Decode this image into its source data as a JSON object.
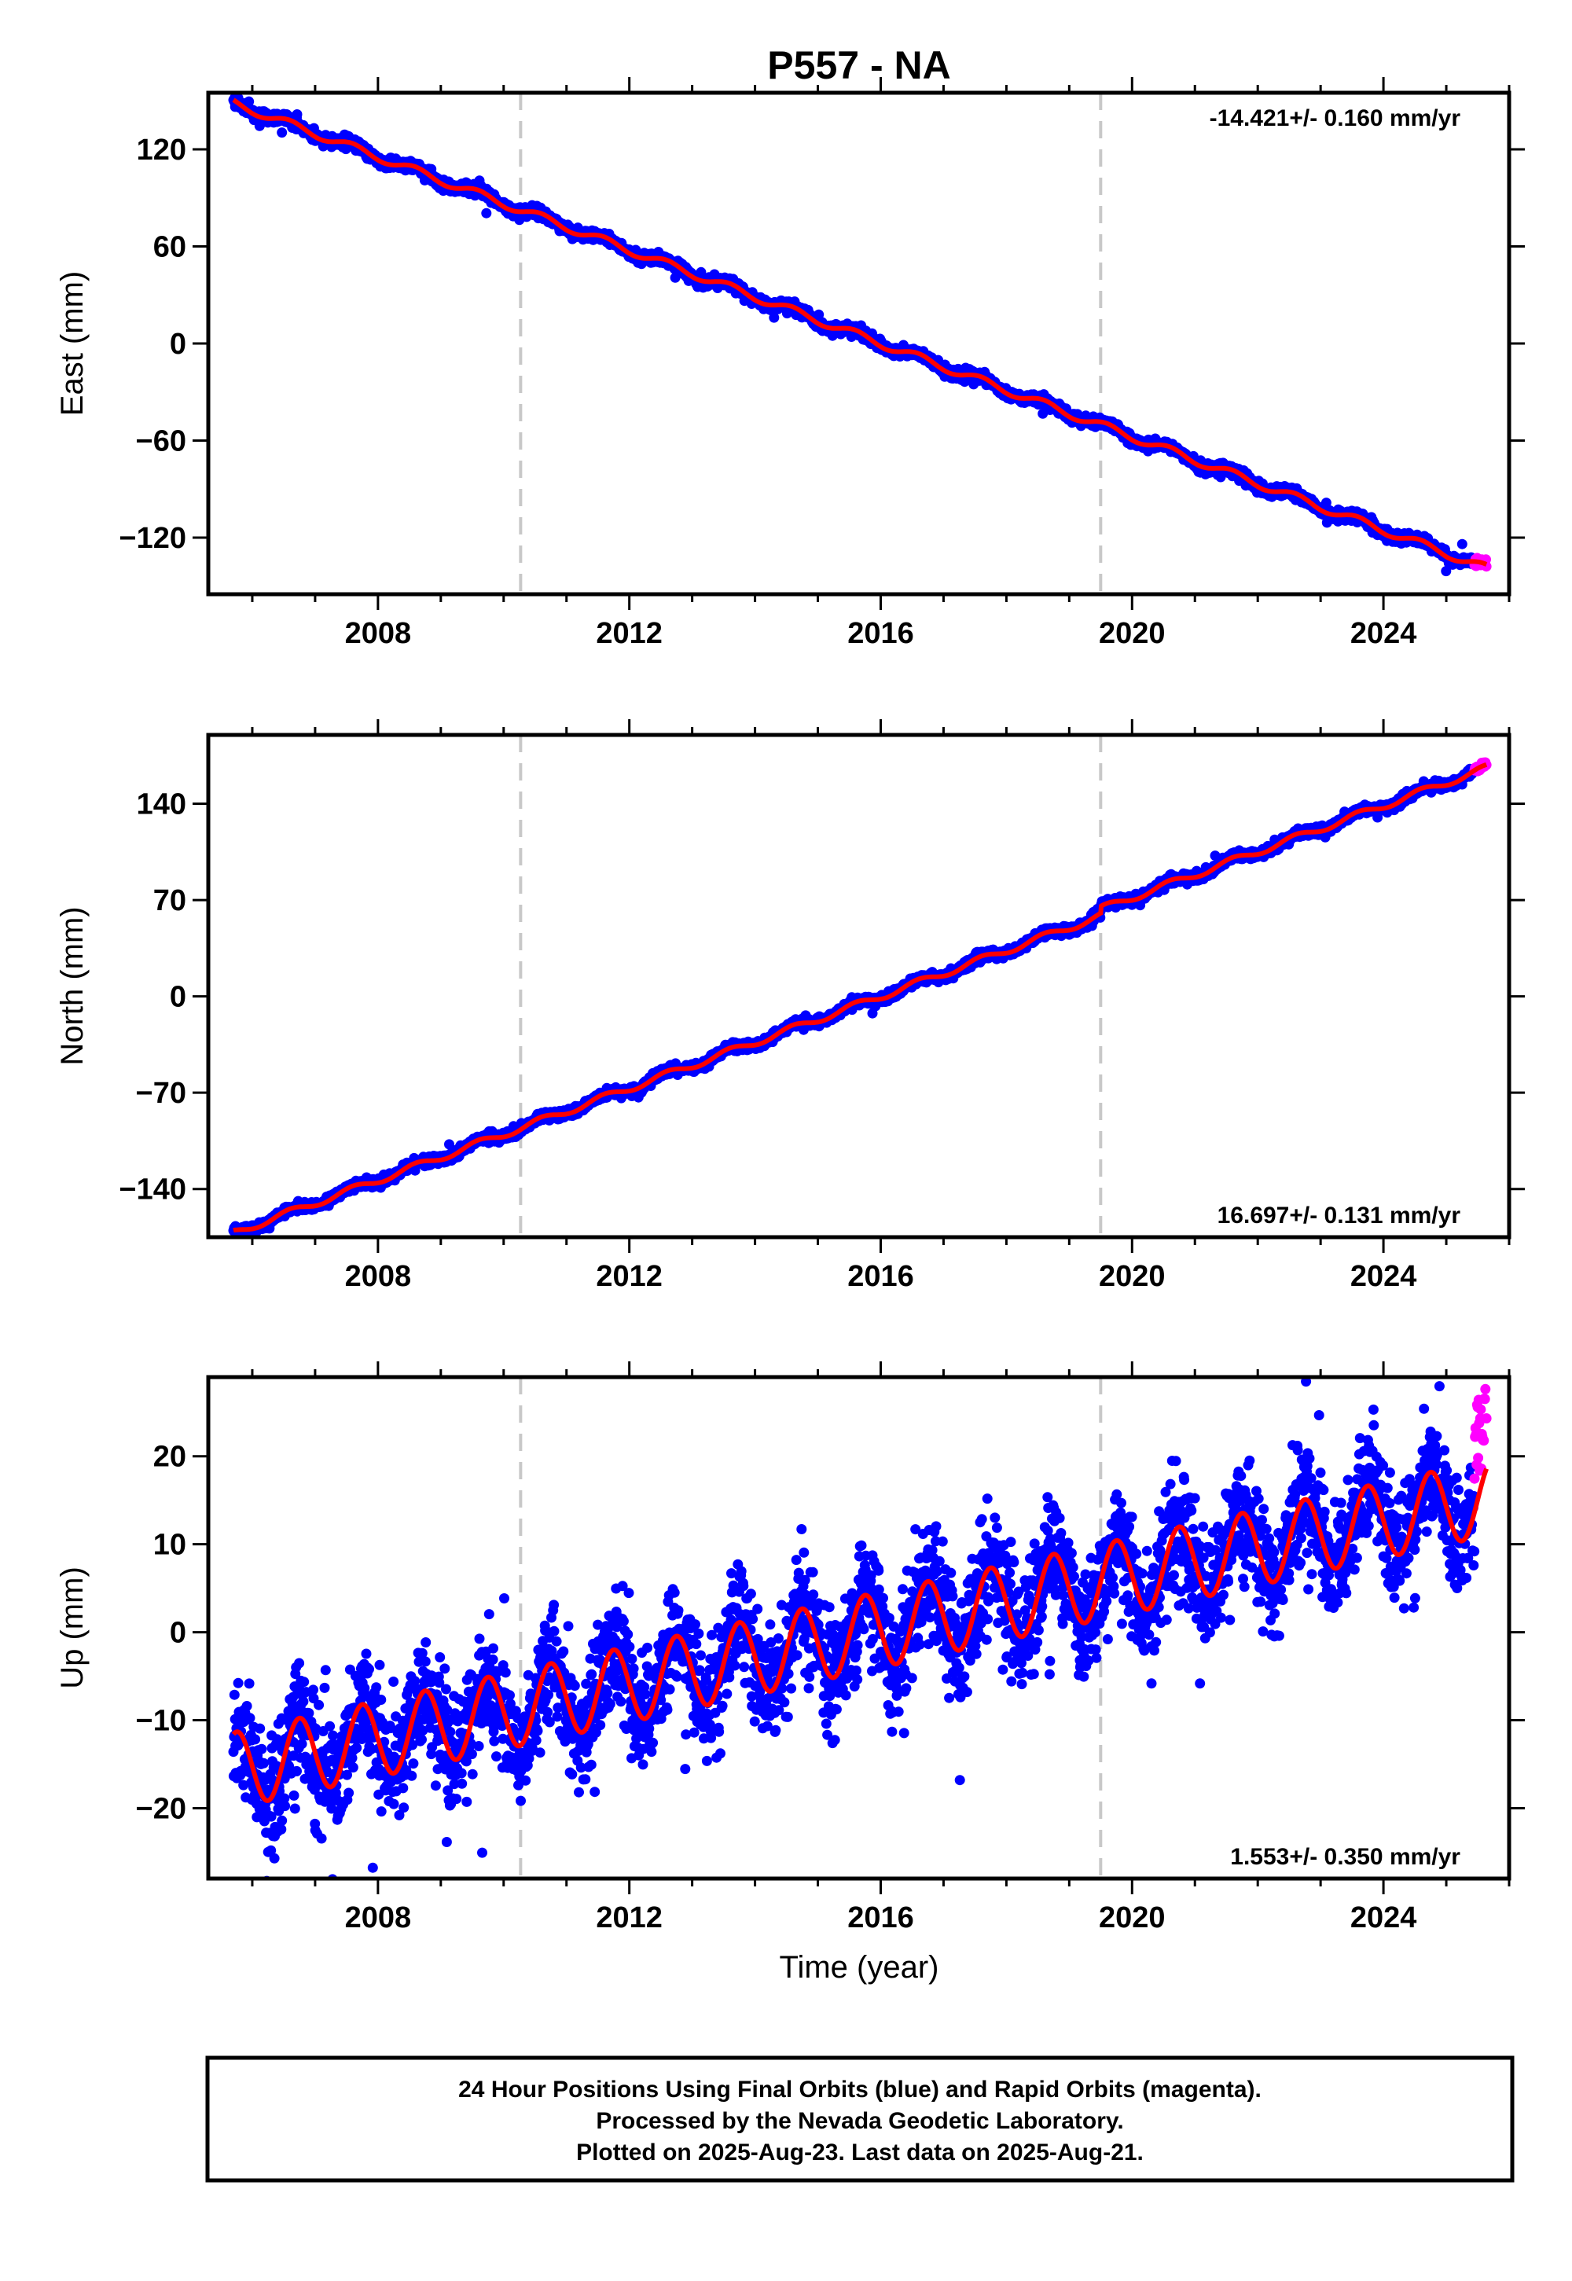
{
  "title": "P557 - NA",
  "xlabel": "Time (year)",
  "footer": [
    "24 Hour Positions Using Final Orbits (blue) and Rapid Orbits (magenta).",
    "Processed by the Nevada Geodetic Laboratory.",
    "Plotted on 2025-Aug-23. Last data on 2025-Aug-21."
  ],
  "colors": {
    "final": "#0000ff",
    "rapid": "#ff00ff",
    "model": "#ff0000",
    "step_line": "#c8c8c8"
  },
  "chart_data": [
    {
      "type": "scatter",
      "ylabel": "East (mm)",
      "rate_text": "-14.421+/- 0.160 mm/yr",
      "rate_position": "top-right",
      "xlim": [
        2005.3,
        2026.0
      ],
      "ylim": [
        -155,
        155
      ],
      "xticks": [
        2008,
        2012,
        2016,
        2020,
        2024
      ],
      "yticks": [
        -120,
        -60,
        0,
        60,
        120
      ],
      "step_epochs": [
        2010.27,
        2019.5
      ],
      "start_year": 2005.7,
      "end_year": 2025.45,
      "rapid_start_year": 2025.45,
      "rapid_end_year": 2025.64,
      "intercept_at_2016": 0,
      "rate_mm_per_yr": -14.421,
      "annual_amp_mm": 2.5,
      "noise_mm": 1.6,
      "series": [
        {
          "name": "Final Orbits (blue)",
          "points": "daily solutions 2005.7–2025.45"
        },
        {
          "name": "Rapid Orbits (magenta)",
          "points": "daily solutions 2025.45–2025.64"
        }
      ]
    },
    {
      "type": "scatter",
      "ylabel": "North (mm)",
      "rate_text": "16.697+/- 0.131 mm/yr",
      "rate_position": "bottom-right",
      "xlim": [
        2005.3,
        2026.0
      ],
      "ylim": [
        -175,
        190
      ],
      "xticks": [
        2008,
        2012,
        2016,
        2020,
        2024
      ],
      "yticks": [
        -140,
        -70,
        0,
        70,
        140
      ],
      "step_epochs": [
        2010.27,
        2019.5
      ],
      "start_year": 2005.7,
      "end_year": 2025.45,
      "rapid_start_year": 2025.45,
      "rapid_end_year": 2025.64,
      "intercept_at_2016": 0,
      "rate_mm_per_yr": 16.697,
      "annual_amp_mm": 2.5,
      "noise_mm": 1.6,
      "offset_at_2019_5_mm": 5,
      "series": [
        {
          "name": "Final Orbits (blue)",
          "points": "daily solutions 2005.7–2025.45"
        },
        {
          "name": "Rapid Orbits (magenta)",
          "points": "daily solutions 2025.45–2025.64"
        }
      ]
    },
    {
      "type": "scatter",
      "ylabel": "Up (mm)",
      "rate_text": "1.553+/- 0.350 mm/yr",
      "rate_position": "bottom-right",
      "xlim": [
        2005.3,
        2026.0
      ],
      "ylim": [
        -28,
        29
      ],
      "xticks": [
        2008,
        2012,
        2016,
        2020,
        2024
      ],
      "yticks": [
        -20,
        -10,
        0,
        10,
        20
      ],
      "step_epochs": [
        2010.27,
        2019.5
      ],
      "start_year": 2005.7,
      "end_year": 2025.45,
      "rapid_start_year": 2025.45,
      "rapid_end_year": 2025.64,
      "intercept_at_2016": 0.3,
      "rate_mm_per_yr": 1.553,
      "annual_amp_mm": 4.3,
      "annual_phase_peak_fraction": 0.75,
      "noise_mm": 3.2,
      "series": [
        {
          "name": "Final Orbits (blue)",
          "points": "daily solutions 2005.7–2025.45"
        },
        {
          "name": "Rapid Orbits (magenta)",
          "points": "daily solutions 2025.45–2025.64"
        }
      ]
    }
  ]
}
